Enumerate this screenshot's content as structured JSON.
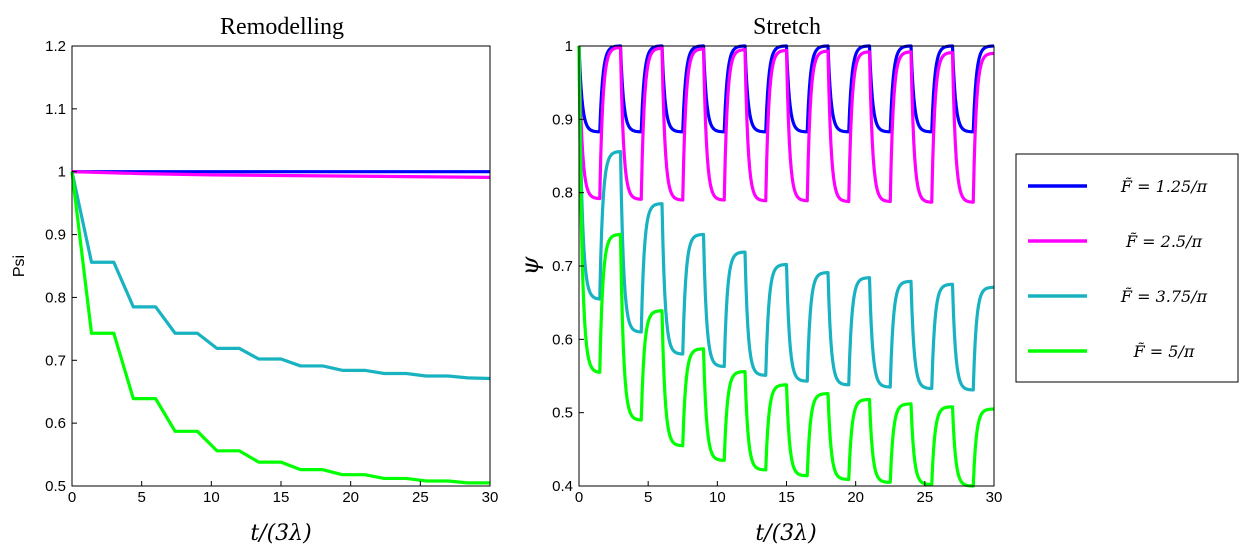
{
  "chart_data": [
    {
      "type": "line",
      "title": "Remodelling",
      "xlabel": "t/(3λ)",
      "ylabel": "Psi",
      "xlim": [
        0,
        30
      ],
      "ylim": [
        0.5,
        1.2
      ],
      "xticks": [
        0,
        5,
        10,
        15,
        20,
        25,
        30
      ],
      "yticks": [
        0.5,
        0.6,
        0.7,
        0.8,
        0.9,
        1,
        1.1,
        1.2
      ],
      "xtick_labels": [
        "0",
        "5",
        "10",
        "15",
        "20",
        "25",
        "30"
      ],
      "ytick_labels": [
        "0.5",
        "0.6",
        "0.7",
        "0.8",
        "0.9",
        "1",
        "1.1",
        "1.2"
      ],
      "grid": false,
      "series": [
        {
          "name": "F̃ = 1.25/π",
          "color": "#0000ff",
          "x": [
            0,
            30
          ],
          "y": [
            1.0,
            1.0
          ]
        },
        {
          "name": "F̃ = 2.5/π",
          "color": "#ff00ff",
          "x": [
            0,
            5,
            10,
            15,
            20,
            25,
            30
          ],
          "y": [
            1.0,
            0.997,
            0.995,
            0.994,
            0.993,
            0.992,
            0.991
          ]
        },
        {
          "name": "F̃ = 3.75/π",
          "color": "#19b2c0",
          "x": [
            0,
            1.4,
            3.0,
            4.4,
            6.0,
            7.4,
            9.0,
            10.4,
            12.0,
            13.4,
            15.0,
            16.4,
            18.0,
            19.4,
            21.0,
            22.4,
            24.0,
            25.4,
            27.0,
            28.4,
            30.0
          ],
          "y": [
            1.0,
            0.856,
            0.856,
            0.785,
            0.785,
            0.743,
            0.743,
            0.719,
            0.719,
            0.702,
            0.702,
            0.691,
            0.691,
            0.684,
            0.684,
            0.679,
            0.679,
            0.675,
            0.675,
            0.672,
            0.671
          ]
        },
        {
          "name": "F̃ = 5/π",
          "color": "#00ff00",
          "x": [
            0,
            1.4,
            3.0,
            4.4,
            6.0,
            7.4,
            9.0,
            10.4,
            12.0,
            13.4,
            15.0,
            16.4,
            18.0,
            19.4,
            21.0,
            22.4,
            24.0,
            25.4,
            27.0,
            28.4,
            30.0
          ],
          "y": [
            1.0,
            0.743,
            0.743,
            0.639,
            0.639,
            0.587,
            0.587,
            0.556,
            0.556,
            0.538,
            0.538,
            0.526,
            0.526,
            0.518,
            0.518,
            0.512,
            0.512,
            0.508,
            0.508,
            0.505,
            0.505
          ]
        }
      ]
    },
    {
      "type": "line",
      "title": "Stretch",
      "xlabel": "t/(3λ)",
      "ylabel": "ψ",
      "xlim": [
        0,
        30
      ],
      "ylim": [
        0.4,
        1.0
      ],
      "xticks": [
        0,
        5,
        10,
        15,
        20,
        25,
        30
      ],
      "yticks": [
        0.4,
        0.5,
        0.6,
        0.7,
        0.8,
        0.9,
        1
      ],
      "xtick_labels": [
        "0",
        "5",
        "10",
        "15",
        "20",
        "25",
        "30"
      ],
      "ytick_labels": [
        "0.4",
        "0.5",
        "0.6",
        "0.7",
        "0.8",
        "0.9",
        "1"
      ],
      "grid": false,
      "period": 3,
      "legend_position": "right",
      "series": [
        {
          "name": "F̃ = 1.25/π",
          "color": "#0000ff",
          "cycle_peaks": [
            1.0,
            1.0,
            1.0,
            1.0,
            1.0,
            1.0,
            1.0,
            1.0,
            1.0,
            1.0
          ],
          "cycle_troughs": [
            0.883,
            0.883,
            0.883,
            0.883,
            0.883,
            0.883,
            0.883,
            0.883,
            0.883,
            0.883
          ],
          "final_value": 1.0
        },
        {
          "name": "F̃ = 2.5/π",
          "color": "#ff00ff",
          "cycle_peaks": [
            1.0,
            0.998,
            0.997,
            0.996,
            0.995,
            0.994,
            0.993,
            0.992,
            0.992,
            0.991
          ],
          "cycle_troughs": [
            0.792,
            0.791,
            0.79,
            0.79,
            0.789,
            0.789,
            0.788,
            0.788,
            0.787,
            0.787
          ],
          "final_value": 0.99
        },
        {
          "name": "F̃ = 3.75/π",
          "color": "#19b2c0",
          "cycle_peaks": [
            1.0,
            0.856,
            0.785,
            0.743,
            0.719,
            0.702,
            0.691,
            0.684,
            0.679,
            0.675
          ],
          "cycle_troughs": [
            0.655,
            0.61,
            0.58,
            0.563,
            0.551,
            0.543,
            0.538,
            0.535,
            0.533,
            0.531
          ],
          "final_value": 0.671
        },
        {
          "name": "F̃ = 5/π",
          "color": "#00ff00",
          "cycle_peaks": [
            1.0,
            0.743,
            0.639,
            0.587,
            0.556,
            0.538,
            0.526,
            0.518,
            0.512,
            0.508
          ],
          "cycle_troughs": [
            0.555,
            0.49,
            0.455,
            0.435,
            0.422,
            0.414,
            0.409,
            0.405,
            0.402,
            0.4
          ],
          "final_value": 0.505
        }
      ]
    }
  ],
  "legend": {
    "entries": [
      {
        "prefix": "F̃ = ",
        "value": "1.25/π",
        "color": "#0000ff"
      },
      {
        "prefix": "F̃ = ",
        "value": "2.5/π",
        "color": "#ff00ff"
      },
      {
        "prefix": "F̃ = ",
        "value": "3.75/π",
        "color": "#19b2c0"
      },
      {
        "prefix": "F̃ = ",
        "value": "5/π",
        "color": "#00ff00"
      }
    ]
  }
}
